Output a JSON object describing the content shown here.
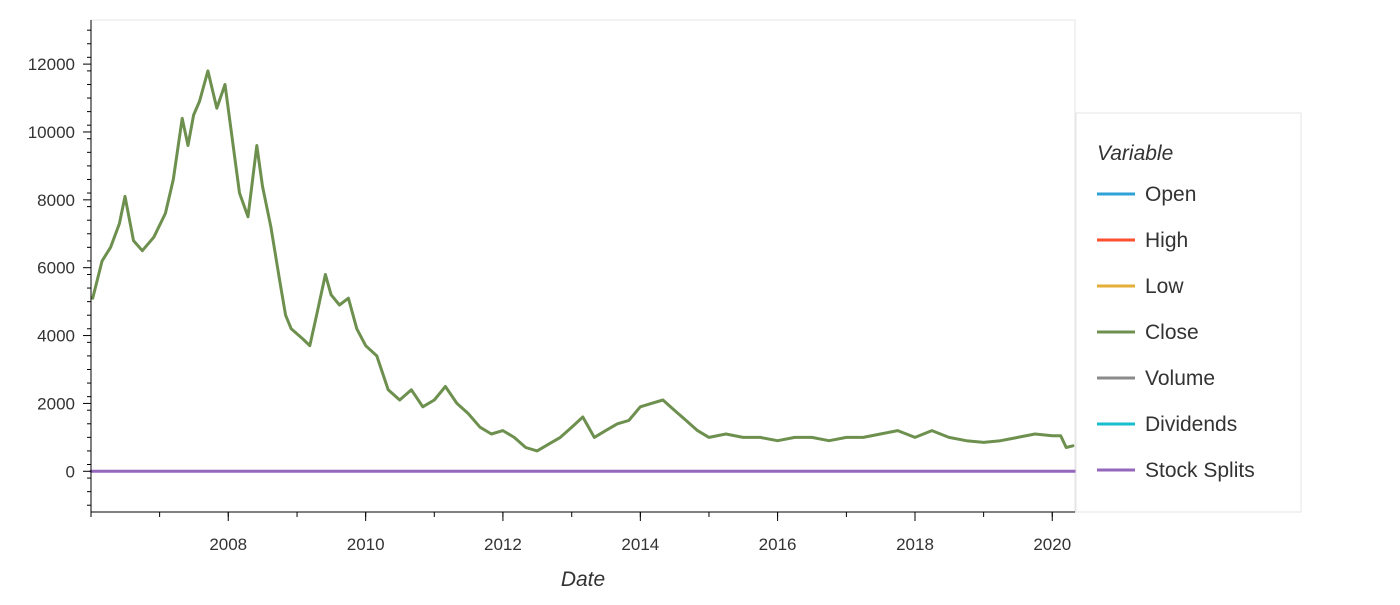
{
  "chart_data": {
    "type": "line",
    "title": "",
    "xlabel": "Date",
    "ylabel": "",
    "xlim": [
      "2006-01-01",
      "2020-05-01"
    ],
    "ylim": [
      -1200,
      13300
    ],
    "x_ticks": [
      "2008",
      "2010",
      "2012",
      "2014",
      "2016",
      "2018",
      "2020"
    ],
    "y_ticks": [
      0,
      2000,
      4000,
      6000,
      8000,
      10000,
      12000
    ],
    "grid": false,
    "legend": {
      "title": "Variable",
      "placement": "right",
      "entries": [
        {
          "name": "Open",
          "color": "#30a2da"
        },
        {
          "name": "High",
          "color": "#fc4f30"
        },
        {
          "name": "Low",
          "color": "#e5ae38"
        },
        {
          "name": "Close",
          "color": "#6d904f"
        },
        {
          "name": "Volume",
          "color": "#8b8b8b"
        },
        {
          "name": "Dividends",
          "color": "#17becf"
        },
        {
          "name": "Stock Splits",
          "color": "#9467bd"
        }
      ]
    },
    "series": [
      {
        "name": "Close",
        "color": "#6d904f",
        "x": [
          "2006-01-10",
          "2006-03-01",
          "2006-04-15",
          "2006-06-01",
          "2006-07-01",
          "2006-08-15",
          "2006-10-01",
          "2006-12-01",
          "2007-02-01",
          "2007-03-15",
          "2007-05-01",
          "2007-06-01",
          "2007-07-01",
          "2007-08-01",
          "2007-09-15",
          "2007-11-01",
          "2007-12-15",
          "2008-01-20",
          "2008-03-01",
          "2008-04-15",
          "2008-06-01",
          "2008-07-01",
          "2008-08-15",
          "2008-10-01",
          "2008-11-01",
          "2008-12-01",
          "2009-02-01",
          "2009-03-10",
          "2009-04-15",
          "2009-06-01",
          "2009-07-01",
          "2009-08-15",
          "2009-10-01",
          "2009-11-15",
          "2010-01-01",
          "2010-03-01",
          "2010-05-01",
          "2010-07-01",
          "2010-09-01",
          "2010-11-01",
          "2011-01-01",
          "2011-03-01",
          "2011-05-01",
          "2011-07-01",
          "2011-09-01",
          "2011-11-01",
          "2012-01-01",
          "2012-03-01",
          "2012-05-01",
          "2012-07-01",
          "2012-09-01",
          "2012-11-01",
          "2013-01-01",
          "2013-03-01",
          "2013-05-01",
          "2013-07-01",
          "2013-09-01",
          "2013-11-01",
          "2014-01-01",
          "2014-03-01",
          "2014-05-01",
          "2014-07-01",
          "2014-09-01",
          "2014-11-01",
          "2015-01-01",
          "2015-04-01",
          "2015-07-01",
          "2015-10-01",
          "2016-01-01",
          "2016-04-01",
          "2016-07-01",
          "2016-10-01",
          "2017-01-01",
          "2017-04-01",
          "2017-07-01",
          "2017-10-01",
          "2018-01-01",
          "2018-04-01",
          "2018-07-01",
          "2018-10-01",
          "2019-01-01",
          "2019-04-01",
          "2019-07-01",
          "2019-10-01",
          "2020-01-01",
          "2020-02-15",
          "2020-03-15",
          "2020-04-20"
        ],
        "values": [
          5100,
          6200,
          6600,
          7300,
          8100,
          6800,
          6500,
          6900,
          7600,
          8600,
          10400,
          9600,
          10500,
          10900,
          11800,
          10700,
          11400,
          9900,
          8200,
          7500,
          9600,
          8400,
          7200,
          5600,
          4600,
          4200,
          3900,
          3700,
          4600,
          5800,
          5200,
          4900,
          5100,
          4200,
          3700,
          3400,
          2400,
          2100,
          2400,
          1900,
          2100,
          2500,
          2000,
          1700,
          1300,
          1100,
          1200,
          1000,
          700,
          600,
          800,
          1000,
          1300,
          1600,
          1000,
          1200,
          1400,
          1500,
          1900,
          2000,
          2100,
          1800,
          1500,
          1200,
          1000,
          1100,
          1000,
          1000,
          900,
          1000,
          1000,
          900,
          1000,
          1000,
          1100,
          1200,
          1000,
          1200,
          1000,
          900,
          850,
          900,
          1000,
          1100,
          1050,
          1050,
          700,
          750
        ]
      },
      {
        "name": "Stock Splits",
        "color": "#9467bd",
        "x": [
          "2006-01-01",
          "2020-05-01"
        ],
        "values": [
          0,
          0
        ]
      }
    ]
  }
}
